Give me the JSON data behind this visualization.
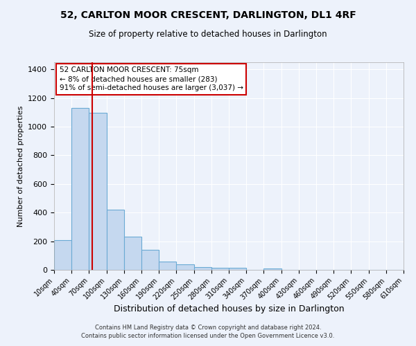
{
  "title": "52, CARLTON MOOR CRESCENT, DARLINGTON, DL1 4RF",
  "subtitle": "Size of property relative to detached houses in Darlington",
  "xlabel": "Distribution of detached houses by size in Darlington",
  "ylabel": "Number of detached properties",
  "bar_color": "#c5d8ef",
  "bar_edge_color": "#6aaad4",
  "background_color": "#edf2fb",
  "grid_color": "#ffffff",
  "bin_labels": [
    "10sqm",
    "40sqm",
    "70sqm",
    "100sqm",
    "130sqm",
    "160sqm",
    "190sqm",
    "220sqm",
    "250sqm",
    "280sqm",
    "310sqm",
    "340sqm",
    "370sqm",
    "400sqm",
    "430sqm",
    "460sqm",
    "490sqm",
    "520sqm",
    "550sqm",
    "580sqm",
    "610sqm"
  ],
  "bin_edges": [
    10,
    40,
    70,
    100,
    130,
    160,
    190,
    220,
    250,
    280,
    310,
    340,
    370,
    400,
    430,
    460,
    490,
    520,
    550,
    580,
    610
  ],
  "bar_heights": [
    210,
    1130,
    1095,
    420,
    230,
    140,
    57,
    38,
    20,
    13,
    13,
    0,
    10,
    0,
    0,
    0,
    0,
    0,
    0,
    0
  ],
  "ylim": [
    0,
    1450
  ],
  "yticks": [
    0,
    200,
    400,
    600,
    800,
    1000,
    1200,
    1400
  ],
  "property_line_x": 75,
  "property_line_color": "#cc0000",
  "annotation_text": "52 CARLTON MOOR CRESCENT: 75sqm\n← 8% of detached houses are smaller (283)\n91% of semi-detached houses are larger (3,037) →",
  "annotation_box_color": "#cc0000",
  "footer_line1": "Contains HM Land Registry data © Crown copyright and database right 2024.",
  "footer_line2": "Contains public sector information licensed under the Open Government Licence v3.0."
}
